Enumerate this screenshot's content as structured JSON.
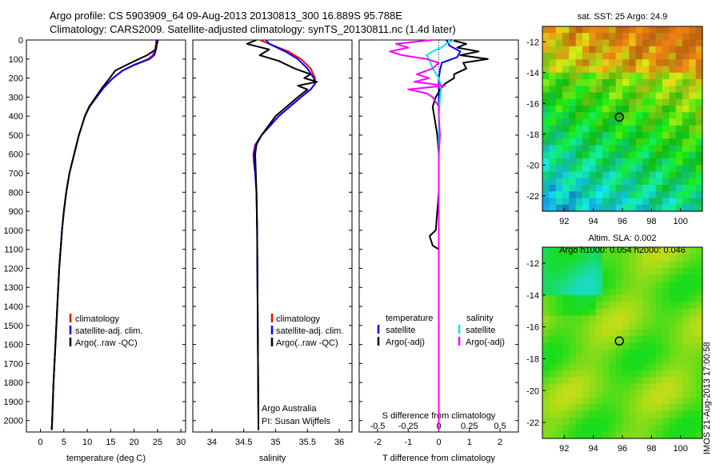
{
  "titles": {
    "line1": "Argo profile: CS 5903909_64 09-Aug-2013 20130813_300 16.889S 95.788E",
    "line2": "Climatology: CARS2009. Satellite-adjusted climatology: synTS_20130811.nc (1.4d later)"
  },
  "footer_stamp": "IMOS 21-Aug-2013 17:00:58",
  "colors": {
    "climatology": "#ff0000",
    "satellite": "#0000ff",
    "argo": "#000000",
    "s_satellite": "#00e5ee",
    "s_argo": "#ff00ff"
  },
  "chart_data": [
    {
      "type": "line",
      "name": "temperature",
      "xlabel": "temperature (deg C)",
      "ylabel": "",
      "xlim": [
        -3,
        31
      ],
      "ylim": [
        2060,
        0
      ],
      "xticks": [
        0,
        5,
        10,
        15,
        20,
        25,
        30
      ],
      "yticks": [
        0,
        100,
        200,
        300,
        400,
        500,
        600,
        700,
        800,
        900,
        1000,
        1100,
        1200,
        1300,
        1400,
        1500,
        1600,
        1700,
        1800,
        1900,
        2000
      ],
      "legend": [
        "climatology",
        "satellite-adj. clim.",
        "Argo(..raw -QC)"
      ],
      "legend_position": "lower-center",
      "series": [
        {
          "name": "climatology",
          "depth": [
            0,
            10,
            50,
            80,
            100,
            130,
            160,
            200,
            250,
            300,
            350,
            400,
            500,
            600,
            700,
            800,
            900,
            1000,
            1200,
            1400,
            1600,
            1800,
            2000,
            2050
          ],
          "values": [
            24.7,
            24.7,
            24.5,
            24,
            23,
            20,
            17.5,
            15.5,
            13.5,
            12,
            10.5,
            9.5,
            8.2,
            7.2,
            6.2,
            5.5,
            5,
            4.6,
            4,
            3.6,
            3.2,
            2.8,
            2.5,
            2.4
          ]
        },
        {
          "name": "satellite-adj. clim.",
          "depth": [
            0,
            10,
            50,
            80,
            100,
            130,
            160,
            200,
            250,
            300,
            350,
            400,
            500,
            600,
            700,
            800,
            900,
            1000,
            1200,
            1400,
            1600,
            1800,
            2000,
            2050
          ],
          "values": [
            24.9,
            24.9,
            24.7,
            24.3,
            23.3,
            20.2,
            17.6,
            15.5,
            13.5,
            12,
            10.5,
            9.5,
            8.2,
            7.2,
            6.2,
            5.5,
            5,
            4.6,
            4,
            3.6,
            3.2,
            2.8,
            2.5,
            2.4
          ]
        },
        {
          "name": "Argo(..raw -QC)",
          "depth": [
            0,
            10,
            50,
            80,
            100,
            130,
            160,
            200,
            250,
            300,
            350,
            400,
            500,
            600,
            700,
            800,
            900,
            1000,
            1200,
            1400,
            1600,
            1800,
            2000,
            2050
          ],
          "values": [
            25.1,
            25,
            24.6,
            22.8,
            21,
            18.5,
            16,
            14.8,
            13.2,
            11.8,
            10.4,
            9.5,
            8.2,
            7.2,
            6.2,
            5.5,
            5,
            4.6,
            4,
            3.6,
            3.2,
            2.8,
            2.5,
            2.4
          ]
        }
      ]
    },
    {
      "type": "line",
      "name": "salinity",
      "xlabel": "salinity",
      "ylabel": "",
      "xlim": [
        33.7,
        36.2
      ],
      "ylim": [
        2060,
        0
      ],
      "xticks": [
        34,
        34.5,
        35,
        35.5,
        36
      ],
      "legend": [
        "climatology",
        "satellite-adj. clim.",
        "Argo(..raw -QC)"
      ],
      "legend_position": "lower-center",
      "annotations": [
        "Argo Australia",
        "PI: Susan Wijffels"
      ],
      "series": [
        {
          "name": "climatology",
          "depth": [
            0,
            20,
            60,
            100,
            150,
            200,
            230,
            260,
            300,
            400,
            500,
            550,
            600,
            650,
            700,
            800,
            1000,
            1500,
            2000,
            2050
          ],
          "values": [
            34.75,
            34.9,
            35.2,
            35.4,
            35.55,
            35.62,
            35.62,
            35.55,
            35.4,
            35.05,
            34.78,
            34.68,
            34.65,
            34.66,
            34.68,
            34.7,
            34.71,
            34.72,
            34.73,
            34.73
          ]
        },
        {
          "name": "satellite-adj. clim.",
          "depth": [
            0,
            20,
            60,
            100,
            150,
            200,
            230,
            260,
            300,
            400,
            500,
            550,
            600,
            650,
            700,
            800,
            1000,
            1500,
            2000,
            2050
          ],
          "values": [
            34.85,
            34.9,
            35.15,
            35.35,
            35.5,
            35.6,
            35.62,
            35.55,
            35.4,
            35.05,
            34.78,
            34.69,
            34.66,
            34.67,
            34.68,
            34.7,
            34.71,
            34.72,
            34.73,
            34.73
          ]
        },
        {
          "name": "Argo(..raw -QC)",
          "depth": [
            0,
            20,
            50,
            80,
            110,
            150,
            180,
            200,
            220,
            240,
            260,
            300,
            400,
            500,
            550,
            600,
            700,
            800,
            1000,
            1500,
            2000,
            2050
          ],
          "values": [
            34.7,
            34.55,
            34.9,
            34.75,
            35.05,
            35.3,
            35.55,
            35.45,
            35.65,
            35.35,
            35.5,
            35.35,
            35.0,
            34.78,
            34.7,
            34.68,
            34.69,
            34.7,
            34.71,
            34.72,
            34.73,
            34.73
          ]
        }
      ]
    },
    {
      "type": "line",
      "name": "difference",
      "xlabel": "T difference from climatology",
      "top_label": "S difference from climatology",
      "xlim": [
        -2.6,
        2.6
      ],
      "ylim": [
        2060,
        0
      ],
      "xticks": [
        -2,
        -1,
        0,
        1,
        2
      ],
      "xtick_labels": [
        "-2",
        "-1",
        "0",
        "1",
        "2"
      ],
      "top_xticks": [
        -0.5,
        -0.25,
        0,
        0.25,
        0.5
      ],
      "top_xtick_labels": [
        "-0.5",
        "-0.25",
        "0",
        "0.25",
        "0.5"
      ],
      "legend": {
        "temperature_title": "temperature",
        "salinity_title": "salinity",
        "t_satellite": "satellite",
        "t_argo": "Argo(-adj)",
        "s_satellite": "satellite",
        "s_argo": "Argo(-adj)"
      },
      "series": [
        {
          "name": "T satellite",
          "depth": [
            0,
            30,
            60,
            90,
            120,
            150,
            200,
            300,
            400,
            500,
            700,
            1000,
            1500,
            2050
          ],
          "values": [
            0.25,
            0.35,
            0.7,
            0.6,
            0.1,
            0.05,
            0,
            0,
            0,
            0,
            0,
            0,
            0,
            0
          ]
        },
        {
          "name": "T Argo(-adj)",
          "depth": [
            0,
            20,
            40,
            60,
            80,
            100,
            120,
            150,
            180,
            200,
            230,
            260,
            300,
            350,
            400,
            500,
            600,
            800,
            1000,
            1030,
            1080,
            1100,
            1200,
            1500,
            2050
          ],
          "values": [
            0.4,
            0.9,
            0.6,
            1.3,
            0.7,
            1.6,
            0.8,
            0.9,
            0.5,
            0.5,
            0.2,
            0.05,
            -0.1,
            -0.2,
            -0.15,
            -0.05,
            0,
            0,
            -0.1,
            -0.3,
            -0.2,
            0,
            0,
            0,
            0
          ]
        },
        {
          "name": "S satellite",
          "depth": [
            0,
            20,
            40,
            60,
            80,
            100,
            150,
            200,
            250,
            300,
            400,
            600,
            1000,
            1500,
            2050
          ],
          "values": [
            0.12,
            0.06,
            0.02,
            -0.05,
            -0.1,
            -0.08,
            -0.05,
            0,
            0.02,
            0.01,
            0,
            0,
            0,
            0,
            0
          ]
        },
        {
          "name": "S Argo(-adj)",
          "depth": [
            0,
            20,
            40,
            60,
            80,
            100,
            120,
            150,
            180,
            200,
            220,
            240,
            260,
            280,
            300,
            350,
            400,
            500,
            600,
            800,
            1000,
            2050
          ],
          "values": [
            -0.05,
            -0.35,
            -0.25,
            -0.4,
            -0.3,
            -0.1,
            0,
            -0.05,
            -0.18,
            -0.08,
            -0.2,
            0.05,
            -0.25,
            -0.1,
            -0.05,
            0,
            0,
            0.01,
            0,
            0,
            0,
            0
          ]
        }
      ]
    },
    {
      "type": "heatmap",
      "name": "sst-map",
      "title": "sat. SST: 25 Argo: 24.9",
      "xlim": [
        90.5,
        101.5
      ],
      "ylim": [
        -23,
        -11
      ],
      "xticks": [
        92,
        94,
        96,
        98,
        100
      ],
      "yticks": [
        -12,
        -14,
        -16,
        -18,
        -20,
        -22
      ],
      "marker": {
        "lon": 95.788,
        "lat": -16.889
      }
    },
    {
      "type": "heatmap",
      "name": "sla-map",
      "title": "Altim. SLA: 0.002",
      "subtitle": "Argo h1000: 0.054 h2000: 0.046",
      "xlim": [
        90.5,
        101.5
      ],
      "ylim": [
        -23,
        -11
      ],
      "xticks": [
        92,
        94,
        96,
        98,
        100
      ],
      "yticks": [
        -12,
        -14,
        -16,
        -18,
        -20,
        -22
      ],
      "marker": {
        "lon": 95.788,
        "lat": -16.889
      }
    }
  ]
}
